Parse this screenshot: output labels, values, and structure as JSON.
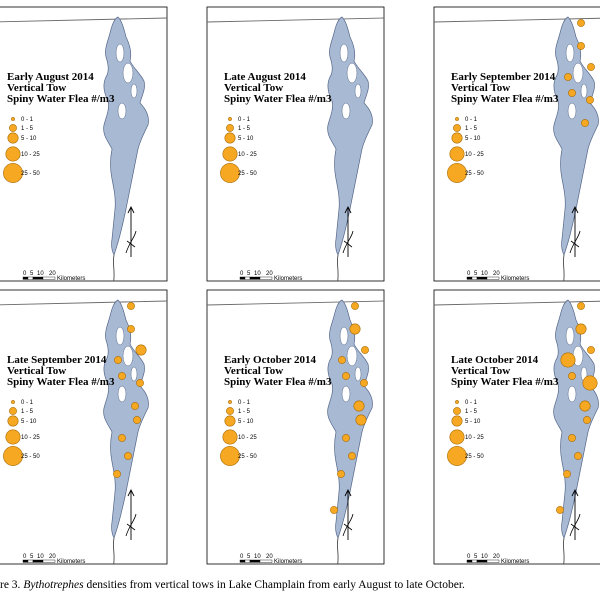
{
  "figure": {
    "colors": {
      "lake": "#a8b9d3",
      "lake_outline": "#55678a",
      "marker_fill": "#f7a823",
      "marker_stroke": "#a86a00",
      "river": "#4a4a4a",
      "border": "#6a6a6a"
    },
    "legend_bins": [
      "0 - 1",
      "1 - 5",
      "5 - 10",
      "10 - 25",
      "25 - 50"
    ],
    "scale_ticks": [
      "0",
      "5",
      "10",
      "20"
    ],
    "scale_unit": "Kilometers",
    "panels": [
      {
        "title_lines": [
          "Early August 2014",
          "Vertical Tow",
          "Spiny Water Flea #/m3"
        ],
        "samples": []
      },
      {
        "title_lines": [
          "Late August 2014",
          "Vertical Tow",
          "Spiny Water Flea #/m3"
        ],
        "samples": []
      },
      {
        "title_lines": [
          "Early September 2014",
          "Vertical Tow",
          "Spiny Water Flea #/m3"
        ],
        "samples": [
          {
            "station": "s1",
            "bin": "1 - 5"
          },
          {
            "station": "s2",
            "bin": "1 - 5"
          },
          {
            "station": "s3",
            "bin": "1 - 5"
          },
          {
            "station": "s4",
            "bin": "1 - 5"
          },
          {
            "station": "s5",
            "bin": "1 - 5"
          },
          {
            "station": "s6",
            "bin": "1 - 5"
          },
          {
            "station": "s7",
            "bin": "1 - 5"
          }
        ]
      },
      {
        "title_lines": [
          "Late September 2014",
          "Vertical Tow",
          "Spiny Water Flea #/m3"
        ],
        "samples": [
          {
            "station": "s1",
            "bin": "1 - 5"
          },
          {
            "station": "s2",
            "bin": "1 - 5"
          },
          {
            "station": "s3",
            "bin": "5 - 10"
          },
          {
            "station": "s4",
            "bin": "1 - 5"
          },
          {
            "station": "s5",
            "bin": "1 - 5"
          },
          {
            "station": "s6",
            "bin": "1 - 5"
          },
          {
            "station": "s7",
            "bin": "1 - 5"
          },
          {
            "station": "s8",
            "bin": "1 - 5"
          },
          {
            "station": "s9",
            "bin": "1 - 5"
          },
          {
            "station": "s10",
            "bin": "1 - 5"
          },
          {
            "station": "s11",
            "bin": "1 - 5"
          }
        ]
      },
      {
        "title_lines": [
          "Early October 2014",
          "Vertical Tow",
          "Spiny Water Flea #/m3"
        ],
        "samples": [
          {
            "station": "s1",
            "bin": "1 - 5"
          },
          {
            "station": "s2",
            "bin": "5 - 10"
          },
          {
            "station": "s3",
            "bin": "1 - 5"
          },
          {
            "station": "s4",
            "bin": "1 - 5"
          },
          {
            "station": "s5",
            "bin": "1 - 5"
          },
          {
            "station": "s6",
            "bin": "1 - 5"
          },
          {
            "station": "s7",
            "bin": "5 - 10"
          },
          {
            "station": "s8",
            "bin": "5 - 10"
          },
          {
            "station": "s9",
            "bin": "1 - 5"
          },
          {
            "station": "s10",
            "bin": "1 - 5"
          },
          {
            "station": "s11",
            "bin": "1 - 5"
          },
          {
            "station": "s12",
            "bin": "1 - 5"
          }
        ]
      },
      {
        "title_lines": [
          "Late October 2014",
          "Vertical Tow",
          "Spiny Water Flea #/m3"
        ],
        "samples": [
          {
            "station": "s1",
            "bin": "1 - 5"
          },
          {
            "station": "s2",
            "bin": "5 - 10"
          },
          {
            "station": "s3",
            "bin": "1 - 5"
          },
          {
            "station": "s4",
            "bin": "10 - 25"
          },
          {
            "station": "s5",
            "bin": "1 - 5"
          },
          {
            "station": "s6",
            "bin": "10 - 25"
          },
          {
            "station": "s7",
            "bin": "5 - 10"
          },
          {
            "station": "s8",
            "bin": "1 - 5"
          },
          {
            "station": "s9",
            "bin": "1 - 5"
          },
          {
            "station": "s10",
            "bin": "1 - 5"
          },
          {
            "station": "s11",
            "bin": "1 - 5"
          },
          {
            "station": "s12",
            "bin": "1 - 5"
          }
        ]
      }
    ]
  },
  "caption": {
    "prefix": "re 3. ",
    "species": "Bythotrephes",
    "suffix": " densities from vertical tows in Lake Champlain from early August to late October."
  }
}
